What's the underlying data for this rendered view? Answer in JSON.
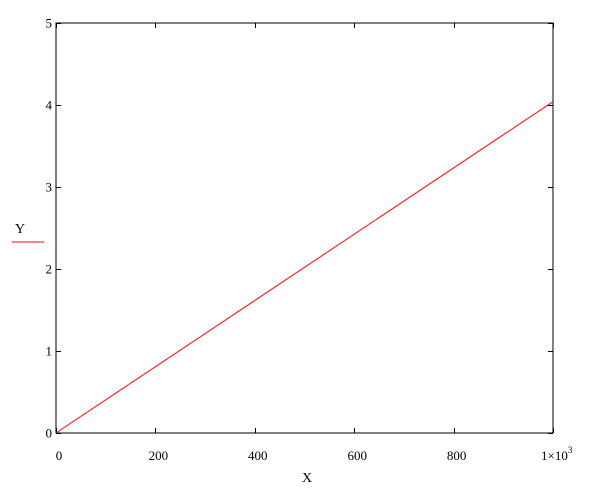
{
  "chart_data": {
    "type": "line",
    "xlabel": "X",
    "ylabel": "Y",
    "xlim": [
      0,
      1000
    ],
    "ylim": [
      0,
      5
    ],
    "x_ticks": [
      {
        "value": 0,
        "label": "0"
      },
      {
        "value": 200,
        "label": "200"
      },
      {
        "value": 400,
        "label": "400"
      },
      {
        "value": 600,
        "label": "600"
      },
      {
        "value": 800,
        "label": "800"
      }
    ],
    "x_end_label": {
      "value": 1000,
      "mantissa": "1×10",
      "exponent": "3"
    },
    "y_ticks": [
      {
        "value": 0,
        "label": "0"
      },
      {
        "value": 1,
        "label": "1"
      },
      {
        "value": 2,
        "label": "2"
      },
      {
        "value": 3,
        "label": "3"
      },
      {
        "value": 4,
        "label": "4"
      },
      {
        "value": 5,
        "label": "5"
      }
    ],
    "grid": false,
    "series": [
      {
        "color": "#ff0000",
        "x": [
          0,
          1000
        ],
        "y": [
          0,
          4.04
        ]
      }
    ]
  }
}
